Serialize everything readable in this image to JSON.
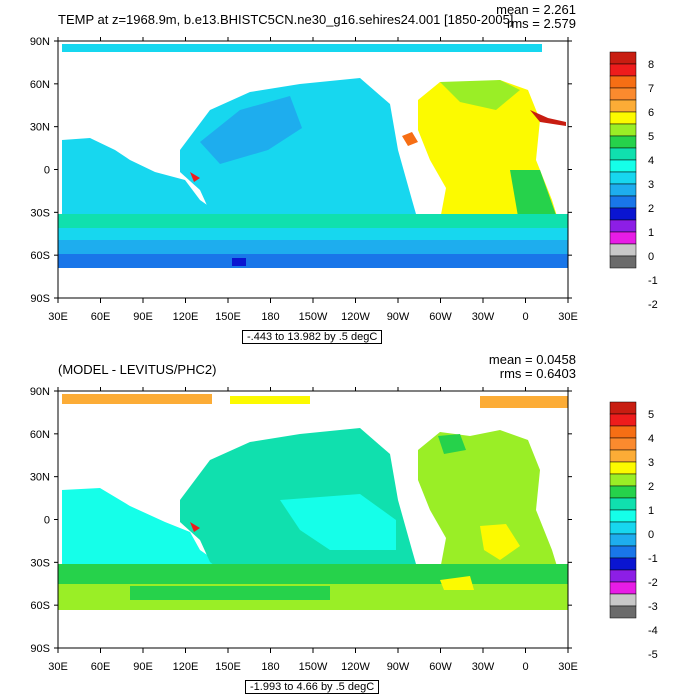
{
  "panels": [
    {
      "id": "top",
      "title": "TEMP at z=1968.9m, b.e13.BHISTC5CN.ne30_g16.sehires24.001 [1850-2005]",
      "stats": {
        "mean": "mean = 2.261",
        "rms": "rms = 2.579"
      },
      "range_label": "-.443 to 13.982 by .5 degC",
      "colorbar": {
        "labels": [
          "8",
          "7",
          "6",
          "5",
          "4",
          "3",
          "2",
          "1",
          "0",
          "-1",
          "-2"
        ],
        "colors": [
          "#c81d11",
          "#ee1c1c",
          "#f66e14",
          "#fb8a2e",
          "#fcac36",
          "#fcfa00",
          "#9aee26",
          "#26d24b",
          "#10e0ae",
          "#15ffe9",
          "#17d7ef",
          "#1eadee",
          "#1976e9",
          "#0a15d1",
          "#8d1ee6",
          "#e81ce6",
          "#c8c8c8",
          "#6b6b6b"
        ]
      }
    },
    {
      "id": "bottom",
      "title": "(MODEL - LEVITUS/PHC2)",
      "stats": {
        "mean": "mean = 0.0458",
        "rms": "rms = 0.6403"
      },
      "range_label": "-1.993 to 4.66 by .5 degC",
      "colorbar": {
        "labels": [
          "5",
          "4",
          "3",
          "2",
          "1",
          "0",
          "-1",
          "-2",
          "-3",
          "-4",
          "-5"
        ],
        "colors": [
          "#c81d11",
          "#ee1c1c",
          "#f66e14",
          "#fb8a2e",
          "#fcac36",
          "#fcfa00",
          "#9aee26",
          "#26d24b",
          "#10e0ae",
          "#15ffe9",
          "#17d7ef",
          "#1eadee",
          "#1976e9",
          "#0a15d1",
          "#8d1ee6",
          "#e81ce6",
          "#c8c8c8",
          "#6b6b6b"
        ]
      }
    }
  ],
  "axes": {
    "lat_labels": [
      "90N",
      "60N",
      "30N",
      "0",
      "30S",
      "60S",
      "90S"
    ],
    "lon_labels": [
      "30E",
      "60E",
      "90E",
      "120E",
      "150E",
      "180",
      "150W",
      "120W",
      "90W",
      "60W",
      "30W",
      "0",
      "30E"
    ]
  }
}
